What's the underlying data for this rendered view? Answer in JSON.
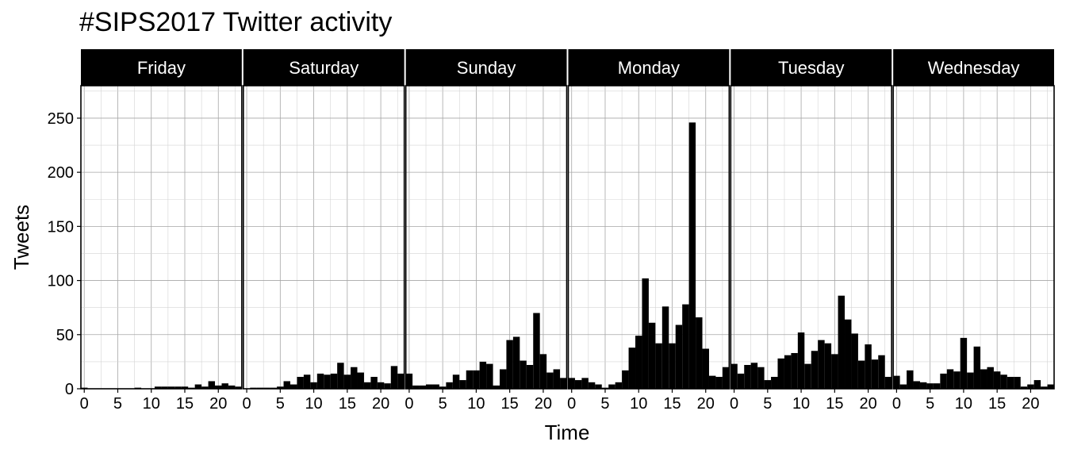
{
  "chart_data": {
    "type": "bar",
    "title": "#SIPS2017 Twitter activity",
    "xlabel": "Time",
    "ylabel": "Tweets",
    "ylim": [
      0,
      280
    ],
    "xlim": [
      -0.5,
      23.5
    ],
    "y_ticks": [
      0,
      50,
      100,
      150,
      200,
      250
    ],
    "x_ticks": [
      0,
      5,
      10,
      15,
      20
    ],
    "grid": true,
    "facet_by": "day",
    "bar_color": "#000000",
    "strip_background": "#000000",
    "strip_text_color": "#ffffff",
    "facets": [
      {
        "label": "Friday",
        "hours": [
          0,
          1,
          2,
          3,
          4,
          5,
          6,
          7,
          8,
          9,
          10,
          11,
          12,
          13,
          14,
          15,
          16,
          17,
          18,
          19,
          20,
          21,
          22,
          23
        ],
        "values": [
          1,
          0,
          0,
          0,
          0,
          0,
          0,
          0,
          1,
          0,
          0,
          2,
          2,
          2,
          2,
          2,
          1,
          4,
          2,
          7,
          3,
          5,
          3,
          2
        ]
      },
      {
        "label": "Saturday",
        "hours": [
          0,
          1,
          2,
          3,
          4,
          5,
          6,
          7,
          8,
          9,
          10,
          11,
          12,
          13,
          14,
          15,
          16,
          17,
          18,
          19,
          20,
          21,
          22,
          23
        ],
        "values": [
          0,
          1,
          1,
          1,
          1,
          2,
          7,
          4,
          11,
          13,
          6,
          14,
          13,
          14,
          24,
          13,
          20,
          15,
          6,
          11,
          6,
          5,
          21,
          14
        ]
      },
      {
        "label": "Sunday",
        "hours": [
          0,
          1,
          2,
          3,
          4,
          5,
          6,
          7,
          8,
          9,
          10,
          11,
          12,
          13,
          14,
          15,
          16,
          17,
          18,
          19,
          20,
          21,
          22,
          23
        ],
        "values": [
          14,
          3,
          3,
          4,
          4,
          2,
          6,
          13,
          8,
          17,
          17,
          25,
          23,
          3,
          18,
          45,
          48,
          26,
          22,
          70,
          32,
          15,
          18,
          10
        ]
      },
      {
        "label": "Monday",
        "hours": [
          0,
          1,
          2,
          3,
          4,
          5,
          6,
          7,
          8,
          9,
          10,
          11,
          12,
          13,
          14,
          15,
          16,
          17,
          18,
          19,
          20,
          21,
          22,
          23
        ],
        "values": [
          10,
          8,
          10,
          6,
          4,
          1,
          4,
          6,
          17,
          38,
          49,
          102,
          61,
          42,
          76,
          42,
          59,
          78,
          246,
          66,
          37,
          12,
          11,
          20
        ]
      },
      {
        "label": "Tuesday",
        "hours": [
          0,
          1,
          2,
          3,
          4,
          5,
          6,
          7,
          8,
          9,
          10,
          11,
          12,
          13,
          14,
          15,
          16,
          17,
          18,
          19,
          20,
          21,
          22,
          23
        ],
        "values": [
          23,
          14,
          22,
          24,
          20,
          8,
          11,
          28,
          31,
          33,
          52,
          23,
          35,
          45,
          42,
          32,
          86,
          64,
          51,
          26,
          41,
          27,
          31,
          11
        ]
      },
      {
        "label": "Wednesday",
        "hours": [
          0,
          1,
          2,
          3,
          4,
          5,
          6,
          7,
          8,
          9,
          10,
          11,
          12,
          13,
          14,
          15,
          16,
          17,
          18,
          19,
          20,
          21,
          22,
          23
        ],
        "values": [
          12,
          4,
          17,
          7,
          6,
          5,
          5,
          14,
          18,
          16,
          47,
          15,
          39,
          18,
          20,
          16,
          13,
          11,
          11,
          2,
          4,
          8,
          2,
          4
        ]
      }
    ]
  }
}
